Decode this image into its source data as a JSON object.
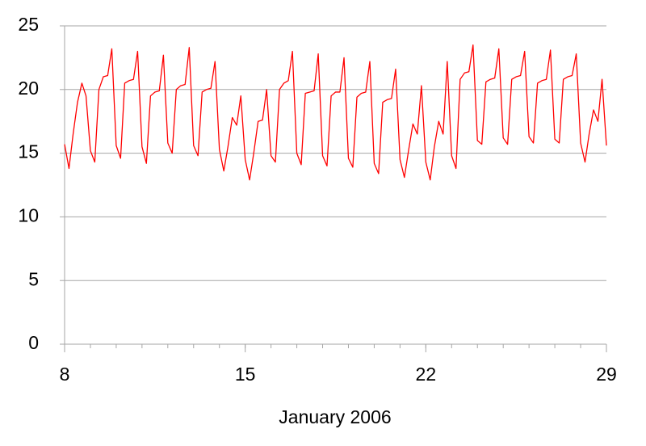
{
  "chart_data": {
    "type": "line",
    "xlabel": "January 2006",
    "color": "#ff0000",
    "grid": true,
    "xlim": [
      8,
      29
    ],
    "xticks": [
      8,
      15,
      22,
      29
    ],
    "ylim": [
      0,
      25
    ],
    "yticks": [
      0,
      5,
      10,
      15,
      20,
      25
    ],
    "x": [
      8,
      8.17,
      8.33,
      8.5,
      8.67,
      8.83,
      9,
      9.17,
      9.33,
      9.5,
      9.67,
      9.83,
      10,
      10.17,
      10.33,
      10.5,
      10.67,
      10.83,
      11,
      11.17,
      11.33,
      11.5,
      11.67,
      11.83,
      12,
      12.17,
      12.33,
      12.5,
      12.67,
      12.83,
      13,
      13.17,
      13.33,
      13.5,
      13.67,
      13.83,
      14,
      14.17,
      14.33,
      14.5,
      14.67,
      14.83,
      15,
      15.17,
      15.33,
      15.5,
      15.67,
      15.83,
      16,
      16.17,
      16.33,
      16.5,
      16.67,
      16.83,
      17,
      17.17,
      17.33,
      17.5,
      17.67,
      17.83,
      18,
      18.17,
      18.33,
      18.5,
      18.67,
      18.83,
      19,
      19.17,
      19.33,
      19.5,
      19.67,
      19.83,
      20,
      20.17,
      20.33,
      20.5,
      20.67,
      20.83,
      21,
      21.17,
      21.33,
      21.5,
      21.67,
      21.83,
      22,
      22.17,
      22.33,
      22.5,
      22.67,
      22.83,
      23,
      23.17,
      23.33,
      23.5,
      23.67,
      23.83,
      24,
      24.17,
      24.33,
      24.5,
      24.67,
      24.83,
      25,
      25.17,
      25.33,
      25.5,
      25.67,
      25.83,
      26,
      26.17,
      26.33,
      26.5,
      26.67,
      26.83,
      27,
      27.17,
      27.33,
      27.5,
      27.67,
      27.83,
      28,
      28.17,
      28.33,
      28.5,
      28.67,
      28.83,
      29
    ],
    "values": [
      15.7,
      13.8,
      16.5,
      19,
      20.5,
      19.5,
      15.2,
      14.3,
      20,
      21,
      21.1,
      23.2,
      15.6,
      14.6,
      20.5,
      20.7,
      20.8,
      23,
      15.5,
      14.2,
      19.5,
      19.8,
      19.9,
      22.7,
      15.8,
      15,
      20,
      20.3,
      20.4,
      23.3,
      15.6,
      14.8,
      19.8,
      20,
      20.1,
      22.2,
      15.3,
      13.6,
      15.5,
      17.8,
      17.2,
      19.5,
      14.5,
      12.9,
      15,
      17.5,
      17.6,
      20,
      14.8,
      14.3,
      20,
      20.5,
      20.7,
      23,
      15,
      14.1,
      19.7,
      19.8,
      19.9,
      22.8,
      14.8,
      14,
      19.5,
      19.8,
      19.8,
      22.5,
      14.6,
      13.9,
      19.4,
      19.7,
      19.8,
      22.2,
      14.2,
      13.4,
      19,
      19.2,
      19.3,
      21.6,
      14.5,
      13.1,
      15.2,
      17.3,
      16.5,
      20.3,
      14.3,
      12.9,
      15.5,
      17.5,
      16.5,
      22.2,
      14.8,
      13.8,
      20.8,
      21.3,
      21.4,
      23.5,
      16,
      15.7,
      20.6,
      20.8,
      20.9,
      23.2,
      16.2,
      15.7,
      20.8,
      21,
      21.1,
      23,
      16.3,
      15.8,
      20.5,
      20.7,
      20.8,
      23.1,
      16.1,
      15.8,
      20.8,
      21,
      21.1,
      22.8,
      15.8,
      14.3,
      16.5,
      18.4,
      17.5,
      20.8,
      15.6
    ]
  }
}
